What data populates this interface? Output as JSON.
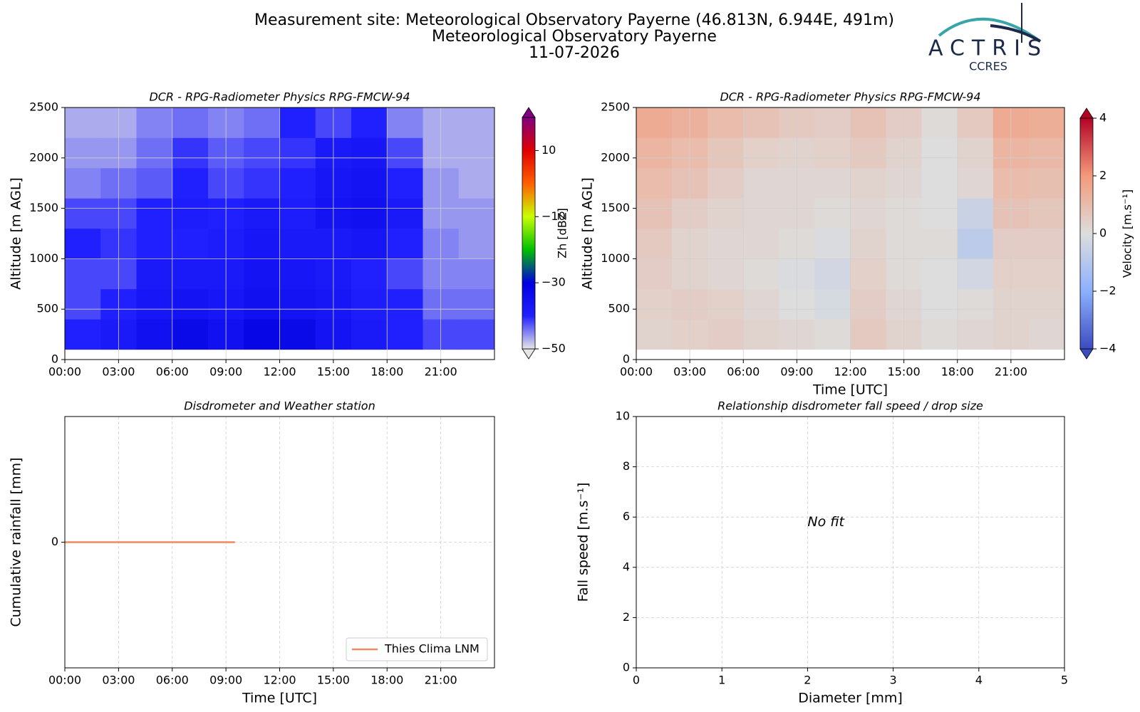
{
  "header": {
    "title": [
      "Measurement site: Meteorological Observatory Payerne (46.813N, 6.944E, 491m)",
      "Meteorological Observatory Payerne",
      "11-07-2026"
    ]
  },
  "logo": {
    "name": "ACTRIS",
    "sub": "CCRES"
  },
  "chart_data": [
    {
      "type": "heatmap",
      "title": "DCR - RPG-Radiometer Physics RPG-FMCW-94",
      "y_label": "Altitude [m AGL]",
      "z_label": "Zh [dBZ]",
      "x": [
        0,
        2,
        4,
        6,
        8,
        10,
        12,
        14,
        16,
        18,
        20,
        22,
        24
      ],
      "y": [
        100,
        400,
        700,
        1000,
        1300,
        1600,
        1900,
        2200,
        2500
      ],
      "z": [
        [
          -40,
          -38,
          -35,
          -33,
          -35,
          -32,
          -33,
          -36,
          -38,
          -40,
          -42,
          -42
        ],
        [
          -42,
          -40,
          -37,
          -36,
          -37,
          -35,
          -36,
          -37,
          -39,
          -40,
          -44,
          -44
        ],
        [
          -42,
          -42,
          -38,
          -38,
          -38,
          -36,
          -37,
          -38,
          -40,
          -42,
          -45,
          -45
        ],
        [
          -40,
          -41,
          -40,
          -40,
          -39,
          -37,
          -38,
          -38,
          -37,
          -40,
          -45,
          -46
        ],
        [
          -42,
          -42,
          -40,
          -39,
          -40,
          -38,
          -39,
          -36,
          -35,
          -38,
          -46,
          -46
        ],
        [
          -45,
          -44,
          -43,
          -40,
          -42,
          -41,
          -40,
          -37,
          -36,
          -40,
          -46,
          -47
        ],
        [
          -46,
          -46,
          -44,
          -41,
          -43,
          -42,
          -41,
          -38,
          -37,
          -42,
          -47,
          -47
        ],
        [
          -47,
          -47,
          -45,
          -44,
          -45,
          -44,
          -40,
          -42,
          -40,
          -45,
          -47,
          -47
        ]
      ],
      "zlim": [
        -50,
        20
      ],
      "zticks": [
        {
          "value": -50,
          "label": "−50"
        },
        {
          "value": -30,
          "label": "−30"
        },
        {
          "value": -10,
          "label": "−10"
        },
        10
      ],
      "colormap": [
        "#e6e6e6",
        "#2020ff",
        "#0000e0",
        "#00c000",
        "#c8ff00",
        "#ff6000",
        "#e00000",
        "#800080"
      ],
      "xlim": [
        0,
        24
      ],
      "ylim": [
        0,
        2500
      ],
      "xticks": [
        {
          "value": 0,
          "label": "00:00"
        },
        {
          "value": 3,
          "label": "03:00"
        },
        {
          "value": 6,
          "label": "06:00"
        },
        {
          "value": 9,
          "label": "09:00"
        },
        {
          "value": 12,
          "label": "12:00"
        },
        {
          "value": 15,
          "label": "15:00"
        },
        {
          "value": 18,
          "label": "18:00"
        },
        {
          "value": 21,
          "label": "21:00"
        }
      ],
      "yticks": [
        0,
        500,
        1000,
        1500,
        2000,
        2500
      ],
      "grid": true
    },
    {
      "type": "heatmap",
      "title": "DCR - RPG-Radiometer Physics RPG-FMCW-94",
      "x_label": "Time [UTC]",
      "y_label": "Altitude [m AGL]",
      "z_label": "Velocity [m.s⁻¹]",
      "x": [
        0,
        2,
        4,
        6,
        8,
        10,
        12,
        14,
        16,
        18,
        20,
        22,
        24
      ],
      "y": [
        100,
        400,
        700,
        1000,
        1300,
        1600,
        1900,
        2200,
        2500
      ],
      "z": [
        [
          0.3,
          0.4,
          0.5,
          0.3,
          0.2,
          0.1,
          0.6,
          0.3,
          0.1,
          0.2,
          0.3,
          0.2
        ],
        [
          0.4,
          0.5,
          0.4,
          0.2,
          0.0,
          -0.2,
          0.5,
          0.2,
          0.0,
          0.1,
          0.3,
          0.3
        ],
        [
          0.5,
          0.3,
          0.2,
          0.1,
          -0.1,
          -0.3,
          0.4,
          0.1,
          0.0,
          -0.3,
          0.4,
          0.4
        ],
        [
          0.6,
          0.3,
          0.2,
          0.2,
          0.1,
          -0.1,
          0.3,
          0.1,
          0.1,
          -0.8,
          0.5,
          0.5
        ],
        [
          0.8,
          0.5,
          0.3,
          0.2,
          0.2,
          0.1,
          0.2,
          0.1,
          0.0,
          -0.5,
          0.8,
          0.7
        ],
        [
          1.0,
          0.8,
          0.5,
          0.2,
          0.2,
          0.2,
          0.3,
          0.2,
          0.0,
          0.2,
          1.0,
          0.9
        ],
        [
          1.2,
          1.0,
          0.7,
          0.4,
          0.3,
          0.4,
          0.6,
          0.3,
          0.0,
          0.3,
          1.2,
          1.1
        ],
        [
          1.5,
          1.3,
          1.0,
          0.8,
          0.6,
          0.5,
          0.8,
          0.5,
          0.1,
          0.6,
          1.5,
          1.4
        ]
      ],
      "zlim": [
        -4,
        4
      ],
      "zticks": [
        {
          "value": -4,
          "label": "−4"
        },
        {
          "value": -2,
          "label": "−2"
        },
        0,
        2,
        4
      ],
      "colormap": [
        "#3b4cc0",
        "#8db0fe",
        "#dddddd",
        "#f49a7b",
        "#b40426"
      ],
      "xlim": [
        0,
        24
      ],
      "ylim": [
        0,
        2500
      ],
      "xticks": [
        {
          "value": 0,
          "label": "00:00"
        },
        {
          "value": 3,
          "label": "03:00"
        },
        {
          "value": 6,
          "label": "06:00"
        },
        {
          "value": 9,
          "label": "09:00"
        },
        {
          "value": 12,
          "label": "12:00"
        },
        {
          "value": 15,
          "label": "15:00"
        },
        {
          "value": 18,
          "label": "18:00"
        },
        {
          "value": 21,
          "label": "21:00"
        }
      ],
      "yticks": [
        0,
        500,
        1000,
        1500,
        2000,
        2500
      ],
      "grid": true
    },
    {
      "type": "line",
      "title": "Disdrometer and Weather station",
      "x_label": "Time [UTC]",
      "y_label": "Cumulative rainfall [mm]",
      "x": [
        0,
        9.5
      ],
      "series": [
        {
          "name": "Thies Clima LNM",
          "color": "#ef8a5b",
          "values": [
            0,
            0
          ]
        }
      ],
      "xlim": [
        0,
        24
      ],
      "ylim": [
        -0.05,
        0.05
      ],
      "xticks": [
        {
          "value": 0,
          "label": "00:00"
        },
        {
          "value": 3,
          "label": "03:00"
        },
        {
          "value": 6,
          "label": "06:00"
        },
        {
          "value": 9,
          "label": "09:00"
        },
        {
          "value": 12,
          "label": "12:00"
        },
        {
          "value": 15,
          "label": "15:00"
        },
        {
          "value": 18,
          "label": "18:00"
        },
        {
          "value": 21,
          "label": "21:00"
        }
      ],
      "yticks": [
        0
      ],
      "grid": true,
      "legend": "lower right"
    },
    {
      "type": "scatter",
      "title": "Relationship disdrometer fall speed / drop size",
      "x_label": "Diameter [mm]",
      "y_label": "Fall speed [m.s⁻¹]",
      "annotation": "No fit",
      "xlim": [
        0,
        5
      ],
      "ylim": [
        0,
        10
      ],
      "xticks": [
        0,
        1,
        2,
        3,
        4,
        5
      ],
      "yticks": [
        0,
        2,
        4,
        6,
        8,
        10
      ],
      "grid": true
    }
  ]
}
